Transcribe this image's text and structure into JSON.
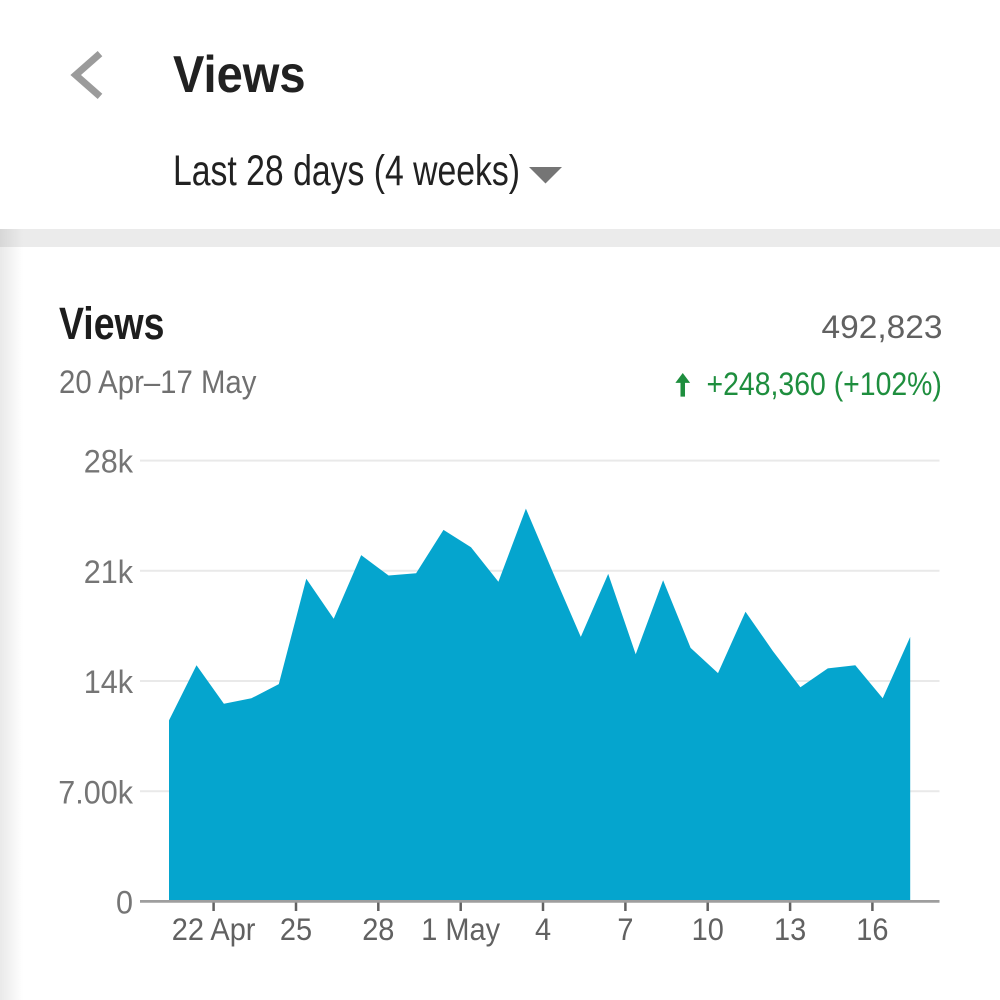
{
  "header": {
    "title": "Views",
    "back_icon": "chevron-left",
    "period_selector": {
      "value": "Last 28 days (4 weeks)",
      "dropdown_icon": "arrow-drop-down"
    }
  },
  "metric_summary": {
    "title": "Views",
    "total": "492,823",
    "date_range": "20 Apr–17 May",
    "delta": "+248,360 (+102%)",
    "delta_direction": "up",
    "delta_icon": "arrow-upward",
    "delta_color": "#1e8e3e"
  },
  "chart_data": {
    "type": "area",
    "title": "Views per day, 20 Apr - 17 May",
    "series_name": "Views",
    "x": [
      "20 Apr",
      "21 Apr",
      "22 Apr",
      "23 Apr",
      "24 Apr",
      "25 Apr",
      "26 Apr",
      "27 Apr",
      "28 Apr",
      "29 Apr",
      "30 Apr",
      "1 May",
      "2 May",
      "3 May",
      "4 May",
      "5 May",
      "6 May",
      "7 May",
      "8 May",
      "9 May",
      "10 May",
      "11 May",
      "12 May",
      "13 May",
      "14 May",
      "15 May",
      "16 May",
      "17 May"
    ],
    "values": [
      11500,
      15000,
      12550,
      12900,
      13800,
      20500,
      17950,
      22000,
      20700,
      20850,
      23600,
      22500,
      20300,
      24950,
      20850,
      16800,
      20800,
      15700,
      20400,
      16100,
      14500,
      18400,
      15900,
      13600,
      14800,
      15000,
      12900,
      16800
    ],
    "ylim": [
      0,
      28000
    ],
    "y_ticks": {
      "values": [
        0,
        7000,
        14000,
        21000,
        28000
      ],
      "labels": [
        "0",
        "7.00k",
        "14k",
        "21k",
        "28k"
      ]
    },
    "x_ticks": {
      "indices": [
        2,
        5,
        8,
        11,
        14,
        17,
        20,
        23,
        26
      ],
      "labels": [
        "22 Apr",
        "25",
        "28",
        "1 May",
        "4",
        "7",
        "10",
        "13",
        "16"
      ]
    },
    "grid": true,
    "legend": false,
    "colors": {
      "fill": "#05a5ce",
      "gridline": "#e9e9e9",
      "axis_line": "#9e9e9e",
      "tick": "#616161",
      "y_label": "#757575",
      "x_label": "#616161"
    }
  }
}
